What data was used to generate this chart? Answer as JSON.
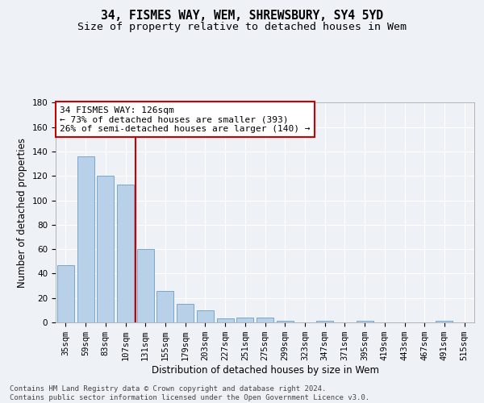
{
  "title": "34, FISMES WAY, WEM, SHREWSBURY, SY4 5YD",
  "subtitle": "Size of property relative to detached houses in Wem",
  "xlabel": "Distribution of detached houses by size in Wem",
  "ylabel": "Number of detached properties",
  "categories": [
    "35sqm",
    "59sqm",
    "83sqm",
    "107sqm",
    "131sqm",
    "155sqm",
    "179sqm",
    "203sqm",
    "227sqm",
    "251sqm",
    "275sqm",
    "299sqm",
    "323sqm",
    "347sqm",
    "371sqm",
    "395sqm",
    "419sqm",
    "443sqm",
    "467sqm",
    "491sqm",
    "515sqm"
  ],
  "values": [
    47,
    136,
    120,
    113,
    60,
    26,
    15,
    10,
    3,
    4,
    4,
    1,
    0,
    1,
    0,
    1,
    0,
    0,
    0,
    1,
    0
  ],
  "bar_color": "#b8d0e8",
  "bar_edge_color": "#6a9fc8",
  "bar_width": 0.85,
  "vline_x": 4.0,
  "vline_color": "#cc0000",
  "ylim": [
    0,
    180
  ],
  "yticks": [
    0,
    20,
    40,
    60,
    80,
    100,
    120,
    140,
    160,
    180
  ],
  "annotation_text": "34 FISMES WAY: 126sqm\n← 73% of detached houses are smaller (393)\n26% of semi-detached houses are larger (140) →",
  "annotation_box_color": "#ffffff",
  "annotation_border_color": "#cc0000",
  "footer_text": "Contains HM Land Registry data © Crown copyright and database right 2024.\nContains public sector information licensed under the Open Government Licence v3.0.",
  "title_fontsize": 10.5,
  "subtitle_fontsize": 9.5,
  "axis_label_fontsize": 8.5,
  "tick_fontsize": 7.5,
  "annotation_fontsize": 8,
  "footer_fontsize": 6.5,
  "background_color": "#eef2f7",
  "plot_bg_color": "#eef2f7"
}
